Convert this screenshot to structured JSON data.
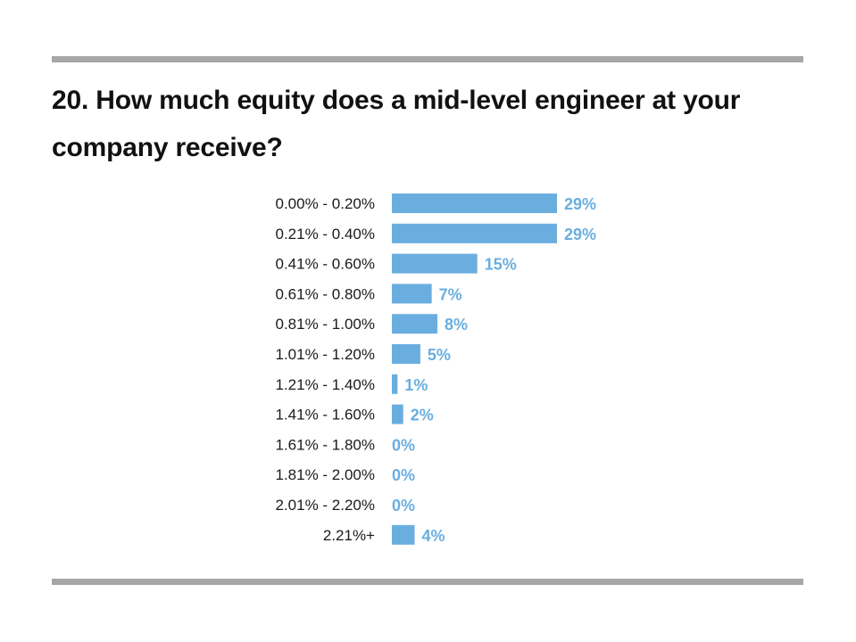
{
  "chart_data": {
    "type": "bar",
    "orientation": "horizontal",
    "title": "20. How much equity does a mid-level engineer at your company receive?",
    "categories": [
      "0.00% - 0.20%",
      "0.21% - 0.40%",
      "0.41% - 0.60%",
      "0.61% - 0.80%",
      "0.81% - 1.00%",
      "1.01% - 1.20%",
      "1.21% - 1.40%",
      "1.41% - 1.60%",
      "1.61% - 1.80%",
      "1.81% - 2.00%",
      "2.01% - 2.20%",
      "2.21%+"
    ],
    "values": [
      29,
      29,
      15,
      7,
      8,
      5,
      1,
      2,
      0,
      0,
      0,
      4
    ],
    "value_labels": [
      "29%",
      "29%",
      "15%",
      "7%",
      "8%",
      "5%",
      "1%",
      "2%",
      "0%",
      "0%",
      "0%",
      "4%"
    ],
    "unit": "%",
    "xlabel": "",
    "ylabel": "",
    "xlim": [
      0,
      29
    ],
    "grid": false,
    "bar_color": "#6aaee0",
    "label_color": "#6aaee0"
  }
}
